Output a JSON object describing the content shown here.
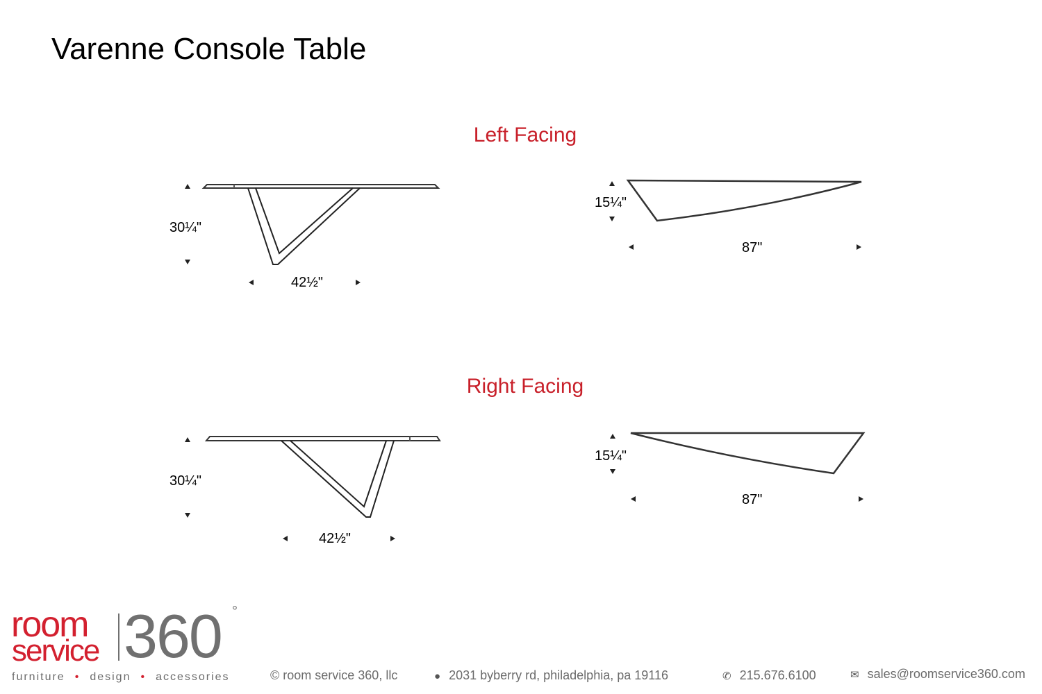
{
  "title": "Varenne Console Table",
  "sections": [
    {
      "label": "Left Facing",
      "height": "30¼\"",
      "depth": "42½\"",
      "top_depth": "15¼\"",
      "width": "87\""
    },
    {
      "label": "Right Facing",
      "height": "30¼\"",
      "depth": "42½\"",
      "top_depth": "15¼\"",
      "width": "87\""
    }
  ],
  "logo": {
    "line1": "room",
    "line2": "service",
    "number": "360",
    "degree": "°"
  },
  "tagline": [
    "furniture",
    "design",
    "accessories"
  ],
  "footer": {
    "copyright": "© room service 360, llc",
    "address": "2031 byberry rd, philadelphia, pa 19116",
    "phone": "215.676.6100",
    "email": "sales@roomservice360.com",
    "icons": [
      "map-pin-icon",
      "phone-icon",
      "envelope-icon"
    ]
  },
  "colors": {
    "accent": "#c8202a",
    "logo_grey": "#707070"
  }
}
